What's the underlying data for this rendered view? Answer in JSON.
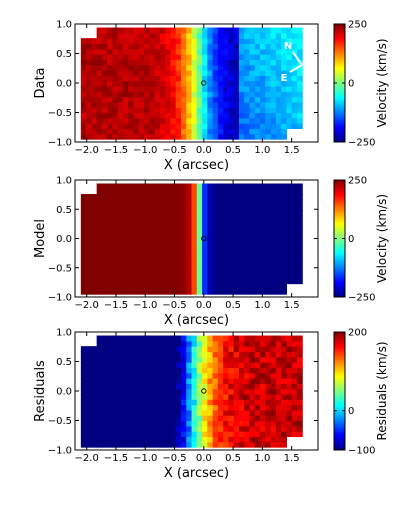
{
  "chart_data": [
    {
      "type": "heatmap",
      "panel": "Data",
      "ylabel": "Data",
      "xlabel": "X (arcsec)",
      "xlim": [
        -2.2,
        1.95
      ],
      "ylim": [
        -1.0,
        1.0
      ],
      "xticks": [
        -2.0,
        -1.5,
        -1.0,
        -0.5,
        0.0,
        0.5,
        1.0,
        1.5
      ],
      "yticks": [
        -1.0,
        -0.5,
        0.0,
        0.5,
        1.0
      ],
      "colorbar": {
        "label": "Velocity (km/s)",
        "min": -250,
        "max": 250,
        "ticks": [
          250,
          0,
          -250
        ]
      },
      "field": {
        "kind": "observed_velocity",
        "v_min": -250,
        "v_max": 250,
        "peak_redshift_at_x": -1.0,
        "peak_blueshift_at_x": 0.5
      },
      "annotations": [
        "N",
        "E"
      ]
    },
    {
      "type": "heatmap",
      "panel": "Model",
      "ylabel": "Model",
      "xlabel": "X (arcsec)",
      "xlim": [
        -2.2,
        1.95
      ],
      "ylim": [
        -1.0,
        1.0
      ],
      "xticks": [
        -2.0,
        -1.5,
        -1.0,
        -0.5,
        0.0,
        0.5,
        1.0,
        1.5
      ],
      "yticks": [
        -1.0,
        -0.5,
        0.0,
        0.5,
        1.0
      ],
      "colorbar": {
        "label": "Velocity (km/s)",
        "min": -250,
        "max": 250,
        "ticks": [
          250,
          0,
          -250
        ]
      },
      "field": {
        "kind": "model_velocity",
        "v_min": -250,
        "v_max": 250,
        "transition_center_x": -0.08,
        "transition_width": 0.12
      }
    },
    {
      "type": "heatmap",
      "panel": "Residuals",
      "ylabel": "Residuals",
      "xlabel": "X (arcsec)",
      "xlim": [
        -2.2,
        1.95
      ],
      "ylim": [
        -1.0,
        1.0
      ],
      "xticks": [
        -2.0,
        -1.5,
        -1.0,
        -0.5,
        0.0,
        0.5,
        1.0,
        1.5
      ],
      "yticks": [
        -1.0,
        -0.5,
        0.0,
        0.5,
        1.0
      ],
      "colorbar": {
        "label": "Residuals (km/s)",
        "min": -100,
        "max": 200,
        "ticks": [
          200,
          0,
          -100
        ]
      },
      "field": {
        "kind": "residual_velocity",
        "v_min": -100,
        "v_max": 200,
        "zero_crossing_x": -0.2
      }
    }
  ]
}
